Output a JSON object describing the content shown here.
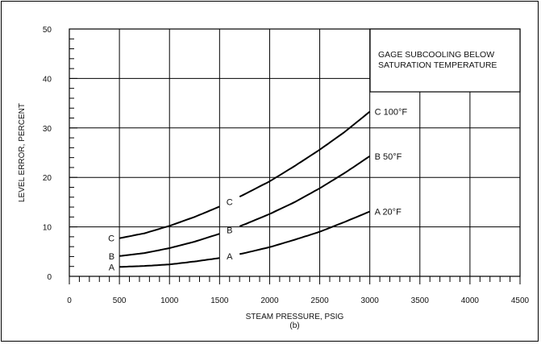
{
  "chart_data": {
    "type": "line",
    "xlabel": "STEAM PRESSURE, PSIG",
    "sublabel": "(b)",
    "ylabel": "LEVEL ERROR, PERCENT",
    "xlim": [
      0,
      4500
    ],
    "ylim": [
      0,
      50
    ],
    "x_ticks": [
      0,
      500,
      1000,
      1500,
      2000,
      2500,
      3000,
      3500,
      4000,
      4500
    ],
    "y_ticks": [
      0,
      10,
      20,
      30,
      40,
      50
    ],
    "grid": true,
    "legend_box": {
      "lines": [
        "GAGE SUBCOOLING BELOW",
        "SATURATION TEMPERATURE"
      ],
      "placement": "top-right"
    },
    "series": [
      {
        "name": "A 20°F",
        "start_label": "A",
        "mid_label": "A",
        "end_label": "A 20°F",
        "x": [
          500,
          750,
          1000,
          1250,
          1500,
          1750,
          2000,
          2250,
          2500,
          2750,
          3000
        ],
        "y": [
          1.9,
          2.1,
          2.4,
          3.0,
          3.7,
          4.7,
          5.9,
          7.4,
          9.0,
          11.0,
          13.1
        ]
      },
      {
        "name": "B 50°F",
        "start_label": "B",
        "mid_label": "B",
        "end_label": "B 50°F",
        "x": [
          500,
          750,
          1000,
          1250,
          1500,
          1750,
          2000,
          2250,
          2500,
          2750,
          3000
        ],
        "y": [
          4.1,
          4.7,
          5.7,
          7.0,
          8.6,
          10.5,
          12.6,
          15.0,
          17.8,
          20.9,
          24.3
        ]
      },
      {
        "name": "C 100°F",
        "start_label": "C",
        "mid_label": "C",
        "end_label": "C 100°F",
        "x": [
          500,
          750,
          1000,
          1250,
          1500,
          1750,
          2000,
          2250,
          2500,
          2750,
          3000
        ],
        "y": [
          7.7,
          8.7,
          10.2,
          12.0,
          14.1,
          16.6,
          19.2,
          22.3,
          25.6,
          29.2,
          33.3
        ]
      }
    ]
  }
}
